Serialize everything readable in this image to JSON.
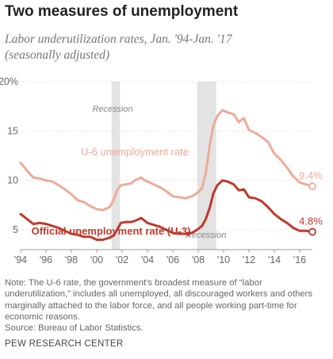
{
  "header": {
    "title": "Two measures of unemployment",
    "subtitle_line1": "Labor underutilization rates, Jan. '94-Jan. '17",
    "subtitle_line2": "(seasonally adjusted)"
  },
  "footer": {
    "note": "Note: The U-6 rate, the government's broadest measure of “labor underutilization,” includes all unemployed, all discouraged workers and others marginally attached to the labor force, and all people working part-time for economic reasons.",
    "source": "Source: Bureau of Labor Statistics.",
    "brand": "PEW RESEARCH CENTER"
  },
  "chart_data": {
    "type": "line",
    "title": "Two measures of unemployment",
    "xlim": [
      1994.0,
      2017.0
    ],
    "ylim": [
      3,
      20
    ],
    "y_ticks": [
      {
        "value": 20,
        "label": "20%"
      },
      {
        "value": 15,
        "label": "15"
      },
      {
        "value": 10,
        "label": "10"
      },
      {
        "value": 5,
        "label": "5"
      }
    ],
    "x_ticks": [
      {
        "value": 1994,
        "label": "'94"
      },
      {
        "value": 1996,
        "label": "'96"
      },
      {
        "value": 1998,
        "label": "'98"
      },
      {
        "value": 2000,
        "label": "'00"
      },
      {
        "value": 2002,
        "label": "'02"
      },
      {
        "value": 2004,
        "label": "'04"
      },
      {
        "value": 2006,
        "label": "'06"
      },
      {
        "value": 2008,
        "label": "'08"
      },
      {
        "value": 2010,
        "label": "'10"
      },
      {
        "value": 2012,
        "label": "'12"
      },
      {
        "value": 2014,
        "label": "'14"
      },
      {
        "value": 2016,
        "label": "'16"
      }
    ],
    "grid": true,
    "recessions": [
      {
        "start": 2001.17,
        "end": 2001.83,
        "label": "Recession"
      },
      {
        "start": 2007.92,
        "end": 2009.42,
        "label": "Recession"
      }
    ],
    "series": [
      {
        "name": "U-6 unemployment rate",
        "color": "#eeaa99",
        "end_label": "9.4%",
        "points": [
          [
            1994.0,
            11.8
          ],
          [
            1994.5,
            11.0
          ],
          [
            1995.0,
            10.3
          ],
          [
            1995.5,
            10.2
          ],
          [
            1996.0,
            10.0
          ],
          [
            1996.5,
            9.9
          ],
          [
            1997.0,
            9.5
          ],
          [
            1997.5,
            9.1
          ],
          [
            1998.0,
            8.6
          ],
          [
            1998.5,
            8.0
          ],
          [
            1999.0,
            7.8
          ],
          [
            1999.5,
            7.4
          ],
          [
            2000.0,
            7.1
          ],
          [
            2000.5,
            7.0
          ],
          [
            2001.0,
            7.3
          ],
          [
            2001.3,
            7.9
          ],
          [
            2001.6,
            9.0
          ],
          [
            2001.9,
            9.5
          ],
          [
            2002.3,
            9.6
          ],
          [
            2002.7,
            9.7
          ],
          [
            2003.0,
            10.0
          ],
          [
            2003.5,
            10.3
          ],
          [
            2003.8,
            10.0
          ],
          [
            2004.0,
            9.9
          ],
          [
            2004.5,
            9.6
          ],
          [
            2005.0,
            9.3
          ],
          [
            2005.5,
            8.9
          ],
          [
            2006.0,
            8.4
          ],
          [
            2006.5,
            8.3
          ],
          [
            2007.0,
            8.2
          ],
          [
            2007.5,
            8.4
          ],
          [
            2007.9,
            8.7
          ],
          [
            2008.3,
            9.2
          ],
          [
            2008.6,
            10.8
          ],
          [
            2008.9,
            13.5
          ],
          [
            2009.2,
            15.6
          ],
          [
            2009.5,
            16.5
          ],
          [
            2009.9,
            17.1
          ],
          [
            2010.3,
            16.9
          ],
          [
            2010.8,
            16.7
          ],
          [
            2011.2,
            15.9
          ],
          [
            2011.6,
            16.3
          ],
          [
            2012.0,
            15.1
          ],
          [
            2012.5,
            14.8
          ],
          [
            2013.0,
            14.4
          ],
          [
            2013.5,
            13.9
          ],
          [
            2014.0,
            12.7
          ],
          [
            2014.5,
            12.1
          ],
          [
            2015.0,
            11.3
          ],
          [
            2015.5,
            10.4
          ],
          [
            2016.0,
            9.8
          ],
          [
            2016.5,
            9.6
          ],
          [
            2017.0,
            9.4
          ]
        ]
      },
      {
        "name": "Official unemployment rate (U-3)",
        "color": "#c0392b",
        "end_label": "4.8%",
        "points": [
          [
            1994.0,
            6.6
          ],
          [
            1994.5,
            6.1
          ],
          [
            1995.0,
            5.6
          ],
          [
            1995.5,
            5.7
          ],
          [
            1996.0,
            5.6
          ],
          [
            1996.5,
            5.4
          ],
          [
            1997.0,
            5.2
          ],
          [
            1997.5,
            4.9
          ],
          [
            1998.0,
            4.6
          ],
          [
            1998.5,
            4.5
          ],
          [
            1999.0,
            4.3
          ],
          [
            1999.5,
            4.3
          ],
          [
            2000.0,
            4.0
          ],
          [
            2000.5,
            4.0
          ],
          [
            2001.0,
            4.2
          ],
          [
            2001.3,
            4.4
          ],
          [
            2001.6,
            5.0
          ],
          [
            2001.9,
            5.7
          ],
          [
            2002.3,
            5.8
          ],
          [
            2002.7,
            5.8
          ],
          [
            2003.0,
            5.9
          ],
          [
            2003.5,
            6.2
          ],
          [
            2003.8,
            5.9
          ],
          [
            2004.0,
            5.7
          ],
          [
            2004.5,
            5.5
          ],
          [
            2005.0,
            5.3
          ],
          [
            2005.5,
            5.0
          ],
          [
            2006.0,
            4.7
          ],
          [
            2006.5,
            4.6
          ],
          [
            2007.0,
            4.6
          ],
          [
            2007.5,
            4.7
          ],
          [
            2007.9,
            5.0
          ],
          [
            2008.3,
            5.4
          ],
          [
            2008.6,
            6.1
          ],
          [
            2008.9,
            7.2
          ],
          [
            2009.2,
            8.7
          ],
          [
            2009.5,
            9.5
          ],
          [
            2009.9,
            10.0
          ],
          [
            2010.3,
            9.9
          ],
          [
            2010.8,
            9.6
          ],
          [
            2011.2,
            9.0
          ],
          [
            2011.6,
            9.1
          ],
          [
            2012.0,
            8.3
          ],
          [
            2012.5,
            8.2
          ],
          [
            2013.0,
            7.9
          ],
          [
            2013.5,
            7.3
          ],
          [
            2014.0,
            6.6
          ],
          [
            2014.5,
            6.1
          ],
          [
            2015.0,
            5.7
          ],
          [
            2015.5,
            5.2
          ],
          [
            2016.0,
            4.9
          ],
          [
            2016.5,
            4.9
          ],
          [
            2017.0,
            4.8
          ]
        ]
      }
    ]
  }
}
